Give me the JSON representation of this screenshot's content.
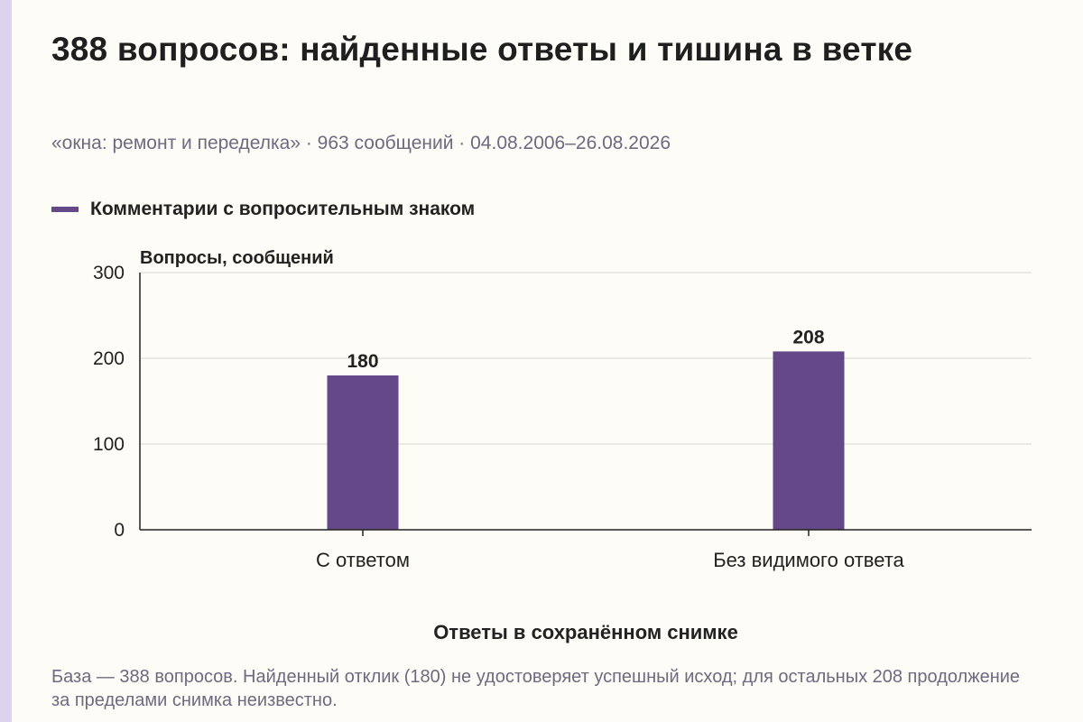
{
  "title": "388 вопросов: найденные ответы и тишина в ветке",
  "subtitle": "«окна: ремонт и переделка» · 963 сообщений · 04.08.2006–26.08.2026",
  "note": "База — 388 вопросов. Найденный отклик (180) не удостоверяет успешный исход; для остальных 208 продолжение за пределами снимка неизвестно.",
  "colors": {
    "bar": "#644887",
    "grid": "#d9d6cf",
    "axis": "#222222",
    "background": "#fdfcf6"
  },
  "chart_data": {
    "type": "bar",
    "categories": [
      "С ответом",
      "Без видимого ответа"
    ],
    "series": [
      {
        "name": "Комментарии с вопросительным знаком",
        "values": [
          180,
          208
        ]
      }
    ],
    "data_labels": [
      "180",
      "208"
    ],
    "xlabel": "Ответы в сохранённом снимке",
    "ylabel": "Вопросы, сообщений",
    "ylim": [
      0,
      300
    ],
    "yticks": [
      0,
      100,
      200,
      300
    ],
    "grid": true,
    "legend_position": "top-left"
  }
}
